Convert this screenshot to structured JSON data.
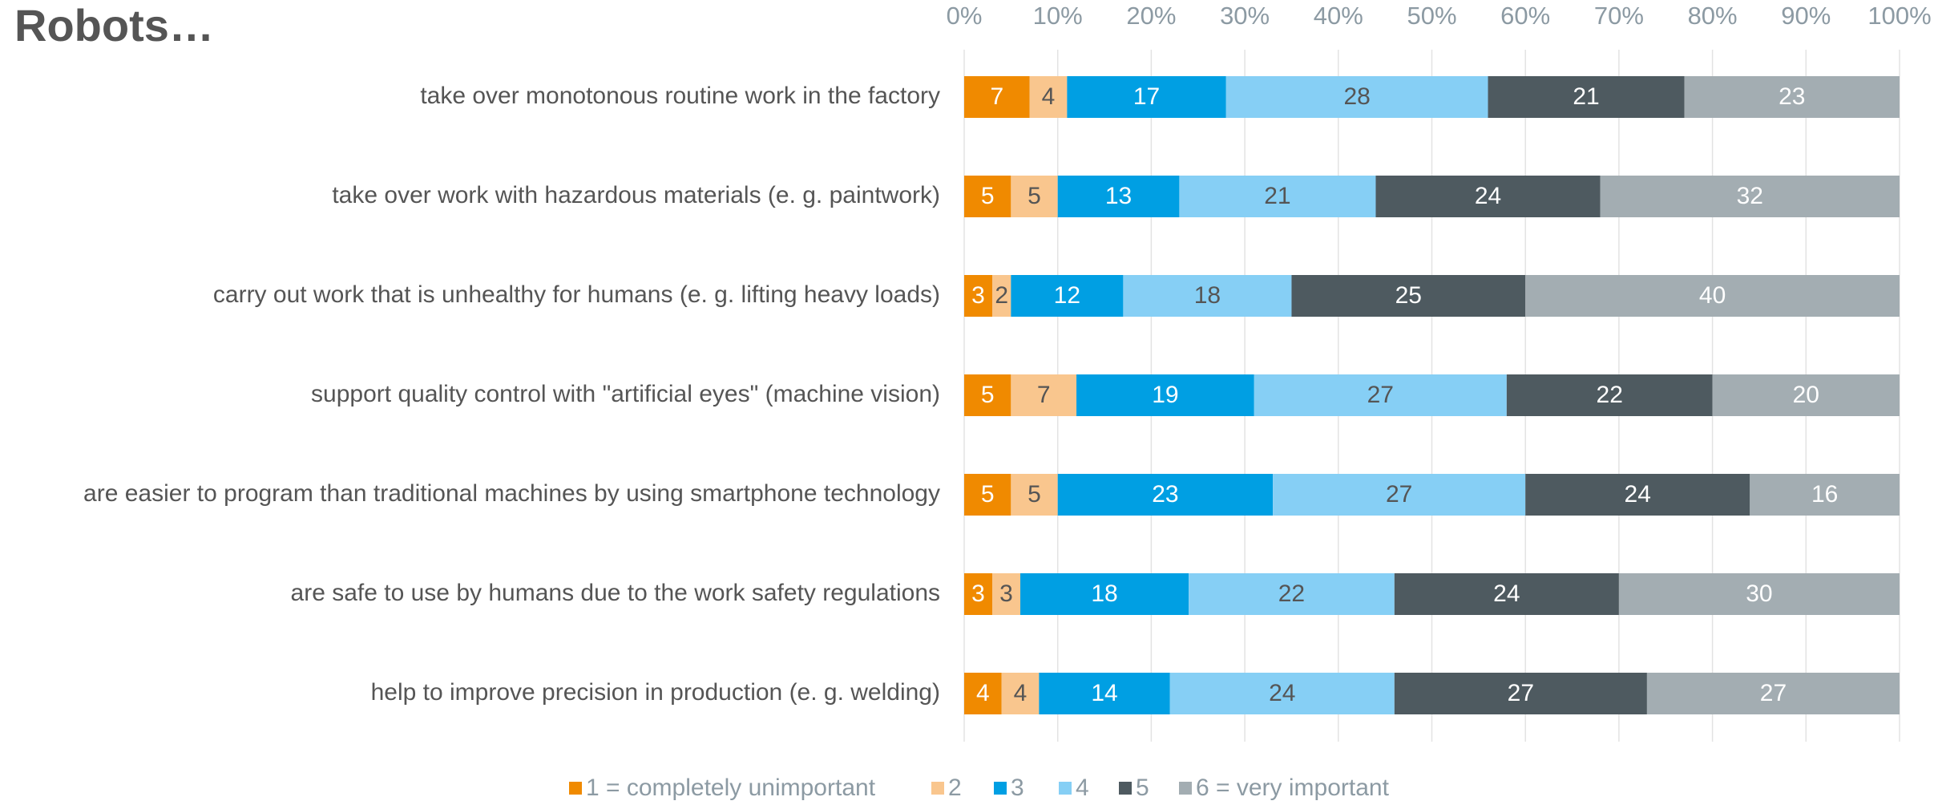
{
  "chart_data": {
    "type": "stacked_barh",
    "title": "Robots…",
    "categories": [
      "take over monotonous routine work in the factory",
      "take over work with hazardous materials (e. g. paintwork)",
      "carry out work that is unhealthy for humans (e. g. lifting heavy loads)",
      "support quality control with \"artificial eyes\" (machine vision)",
      "are easier to program than traditional machines by using smartphone technology",
      "are safe to use by humans due to the work safety regulations",
      "help to improve precision in production (e. g. welding)"
    ],
    "series": [
      {
        "name": "1 = completely unimportant",
        "color": "#f08a00",
        "values": [
          7,
          5,
          3,
          5,
          5,
          3,
          4
        ]
      },
      {
        "name": "2",
        "color": "#f9c68e",
        "values": [
          4,
          5,
          2,
          7,
          5,
          3,
          4
        ]
      },
      {
        "name": "3",
        "color": "#009fe3",
        "values": [
          17,
          13,
          12,
          19,
          23,
          18,
          14
        ]
      },
      {
        "name": "4",
        "color": "#86cff5",
        "values": [
          28,
          21,
          18,
          27,
          27,
          22,
          24
        ]
      },
      {
        "name": "5",
        "color": "#4e5a60",
        "values": [
          21,
          24,
          25,
          22,
          24,
          24,
          27
        ]
      },
      {
        "name": "6 = very important",
        "color": "#a3adb2",
        "values": [
          23,
          32,
          40,
          20,
          16,
          30,
          27
        ]
      }
    ],
    "xlim": [
      0,
      100
    ],
    "xticks": [
      {
        "value": 0,
        "label": "0%"
      },
      {
        "value": 10,
        "label": "10%"
      },
      {
        "value": 20,
        "label": "20%"
      },
      {
        "value": 30,
        "label": "30%"
      },
      {
        "value": 40,
        "label": "40%"
      },
      {
        "value": 50,
        "label": "50%"
      },
      {
        "value": 60,
        "label": "60%"
      },
      {
        "value": 70,
        "label": "70%"
      },
      {
        "value": 80,
        "label": "80%"
      },
      {
        "value": 90,
        "label": "90%"
      },
      {
        "value": 100,
        "label": "100%"
      }
    ],
    "grid": true,
    "legend": "bottom"
  }
}
